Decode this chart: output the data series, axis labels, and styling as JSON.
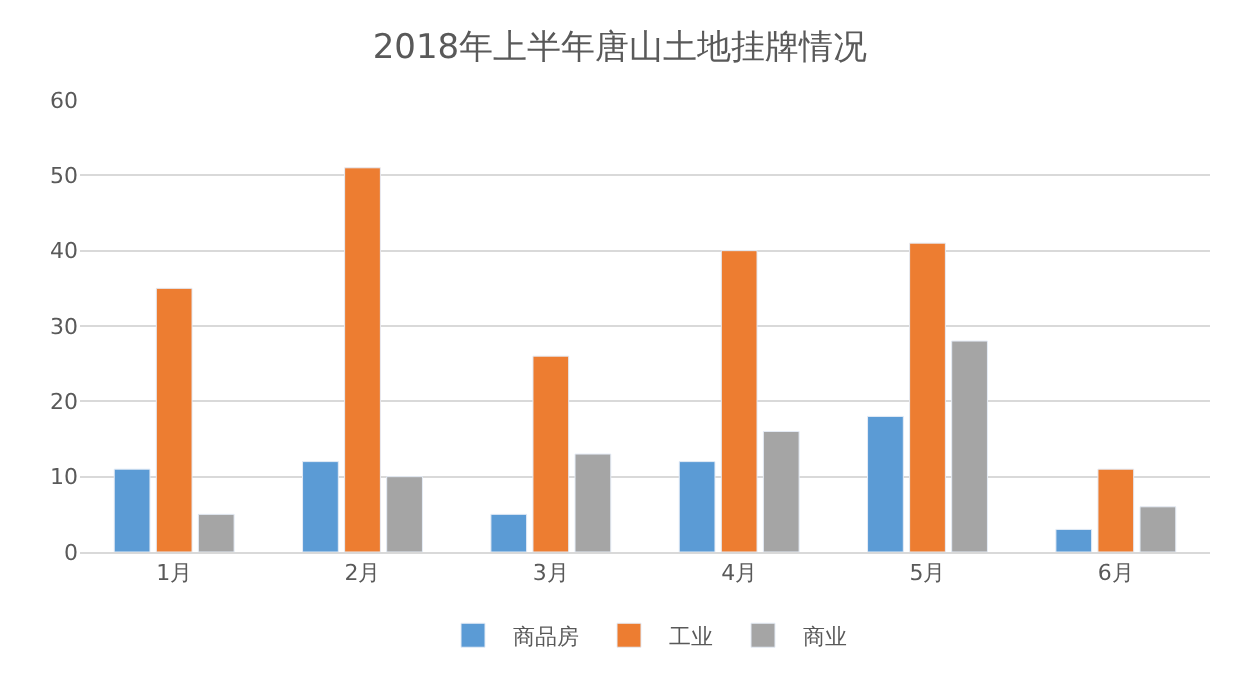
{
  "chart_data": {
    "type": "bar",
    "title": "2018年上半年唐山土地挂牌情况",
    "categories": [
      "1月",
      "2月",
      "3月",
      "4月",
      "5月",
      "6月"
    ],
    "series": [
      {
        "name": "商品房",
        "color": "#5b9bd5",
        "values": [
          11,
          12,
          5,
          12,
          18,
          3
        ]
      },
      {
        "name": "工业",
        "color": "#ed7d31",
        "values": [
          35,
          51,
          26,
          40,
          41,
          11
        ]
      },
      {
        "name": "商业",
        "color": "#a5a5a5",
        "values": [
          5,
          10,
          13,
          16,
          28,
          6
        ]
      }
    ],
    "ylim": [
      0,
      60
    ],
    "yticks": [
      0,
      10,
      20,
      30,
      40,
      50,
      60
    ],
    "grid": "y",
    "legend": "bottom"
  }
}
